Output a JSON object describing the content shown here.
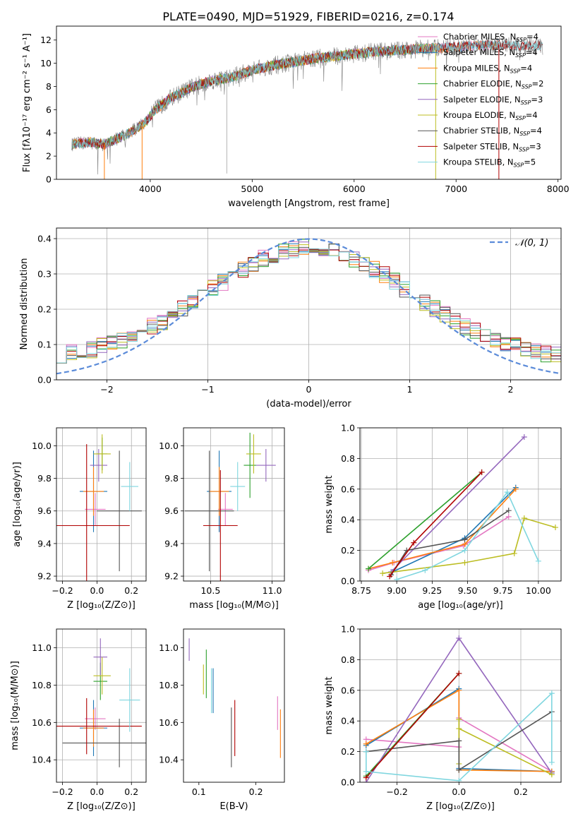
{
  "figure_title": "PLATE=0490, MJD=51929, FIBERID=0216, z=0.174",
  "colors": {
    "Chabrier MILES": "#e377c2",
    "Salpeter MILES": "#1f77b4",
    "Kroupa MILES": "#ff7f0e",
    "Chabrier ELODIE": "#2ca02c",
    "Salpeter ELODIE": "#9467bd",
    "Kroupa ELODIE": "#bcbd22",
    "Chabrier STELIB": "#555555",
    "Salpeter STELIB": "#b10000",
    "Kroupa STELIB": "#7fd6df"
  },
  "chart_data": [
    {
      "id": "spectrum",
      "type": "line",
      "xlabel": "wavelength [Angstrom, rest frame]",
      "ylabel": "Flux [fλ10⁻¹⁷ erg cm⁻² s⁻¹ A⁻¹]",
      "xlim": [
        3080,
        8030
      ],
      "ylim": [
        0,
        13.2
      ],
      "xticks": [
        "4000",
        "5000",
        "6000",
        "7000",
        "8000"
      ],
      "yticks": [
        "0",
        "2",
        "4",
        "6",
        "8",
        "10",
        "12"
      ],
      "grid": false,
      "legend_position": "upper-right",
      "continuum_points": {
        "x": [
          3230,
          3400,
          3550,
          3700,
          3850,
          3950,
          4050,
          4200,
          4400,
          4600,
          4800,
          5000,
          5200,
          5400,
          5600,
          5800,
          6000,
          6200,
          6400,
          6600,
          6800,
          7000,
          7200,
          7400,
          7600,
          7800
        ],
        "y": [
          3.0,
          3.2,
          3.0,
          3.6,
          4.3,
          4.9,
          6.0,
          7.0,
          7.9,
          8.5,
          8.8,
          9.4,
          9.8,
          10.1,
          10.4,
          10.6,
          10.8,
          11.0,
          11.1,
          11.2,
          11.3,
          11.4,
          11.5,
          11.6,
          11.5,
          11.5
        ]
      },
      "series": [
        {
          "name": "Chabrier MILES, N_SSP=4",
          "legend_label": "Chabrier MILES, N",
          "legend_sub": "SSP",
          "legend_tail": "=4",
          "color": "#e377c2",
          "xmax": 7420
        },
        {
          "name": "Salpeter MILES, N_SSP=4",
          "legend_label": "Salpeter MILES, N",
          "legend_sub": "SSP",
          "legend_tail": "=4",
          "color": "#1f77b4",
          "xmax": 7420
        },
        {
          "name": "Kroupa MILES, N_SSP=4",
          "legend_label": "Kroupa MILES, N",
          "legend_sub": "SSP",
          "legend_tail": "=4",
          "color": "#ff7f0e",
          "xmax": 7420
        },
        {
          "name": "Chabrier ELODIE, N_SSP=2",
          "legend_label": "Chabrier ELODIE, N",
          "legend_sub": "SSP",
          "legend_tail": "=2",
          "color": "#2ca02c",
          "xmax": 6800
        },
        {
          "name": "Salpeter ELODIE, N_SSP=3",
          "legend_label": "Salpeter ELODIE, N",
          "legend_sub": "SSP",
          "legend_tail": "=3",
          "color": "#9467bd",
          "xmax": 6800
        },
        {
          "name": "Kroupa ELODIE, N_SSP=4",
          "legend_label": "Kroupa ELODIE, N",
          "legend_sub": "SSP",
          "legend_tail": "=4",
          "color": "#bcbd22",
          "xmax": 6800
        },
        {
          "name": "Chabrier STELIB, N_SSP=4",
          "legend_label": "Chabrier STELIB, N",
          "legend_sub": "SSP",
          "legend_tail": "=4",
          "color": "#555555",
          "xmax": 7850
        },
        {
          "name": "Salpeter STELIB, N_SSP=3",
          "legend_label": "Salpeter STELIB, N",
          "legend_sub": "SSP",
          "legend_tail": "=3",
          "color": "#b10000",
          "xmax": 7850
        },
        {
          "name": "Kroupa STELIB, N_SSP=5",
          "legend_label": "Kroupa STELIB, N",
          "legend_sub": "SSP",
          "legend_tail": "=5",
          "color": "#7fd6df",
          "xmax": 7850
        }
      ]
    },
    {
      "id": "residuals",
      "type": "histogram",
      "xlabel": "(data-model)/error",
      "ylabel": "Normed distribution",
      "xlim": [
        -2.5,
        2.5
      ],
      "ylim": [
        0,
        0.43
      ],
      "xticks": [
        "−2",
        "−1",
        "0",
        "1",
        "2"
      ],
      "yticks": [
        "0.0",
        "0.1",
        "0.2",
        "0.3",
        "0.4"
      ],
      "grid": true,
      "legend_position": "upper-right",
      "gaussian_label": "𝒩(0, 1)",
      "gaussian_color": "#5b8bd9",
      "bin_width": 0.1
    },
    {
      "id": "age_vs_Z",
      "type": "errorbar",
      "xlabel": "Z [log₁₀(Z/Z⊙)]",
      "ylabel": "age  [log₁₀(age/yr)]",
      "xlim": [
        -0.235,
        0.285
      ],
      "ylim": [
        9.17,
        10.11
      ],
      "xticks": [
        "−0.2",
        "0.0",
        "0.2"
      ],
      "yticks": [
        "9.2",
        "9.4",
        "9.6",
        "9.8",
        "10.0"
      ],
      "grid": true,
      "points": [
        {
          "model": "Chabrier MILES",
          "x": -0.01,
          "y": 9.61,
          "xerr": 0.06,
          "yerr": 0.1
        },
        {
          "model": "Salpeter MILES",
          "x": -0.02,
          "y": 9.72,
          "xerr": 0.08,
          "yerr": 0.25
        },
        {
          "model": "Kroupa MILES",
          "x": -0.02,
          "y": 9.72,
          "xerr": 0.06,
          "yerr": 0.15
        },
        {
          "model": "Chabrier ELODIE",
          "x": 0.03,
          "y": 9.95,
          "xerr": 0.03,
          "yerr": 0.1
        },
        {
          "model": "Salpeter ELODIE",
          "x": 0.01,
          "y": 9.88,
          "xerr": 0.05,
          "yerr": 0.1
        },
        {
          "model": "Kroupa ELODIE",
          "x": 0.03,
          "y": 9.95,
          "xerr": 0.05,
          "yerr": 0.12
        },
        {
          "model": "Chabrier STELIB",
          "x": 0.13,
          "y": 9.6,
          "xerr": 0.13,
          "yerr": 0.37
        },
        {
          "model": "Salpeter STELIB",
          "x": -0.06,
          "y": 9.51,
          "xerr": 0.25,
          "yerr": 0.5
        },
        {
          "model": "Kroupa STELIB",
          "x": 0.19,
          "y": 9.75,
          "xerr": 0.05,
          "yerr": 0.15
        }
      ]
    },
    {
      "id": "age_vs_mass",
      "type": "errorbar",
      "xlabel": "mass [log₁₀(M/M⊙)]",
      "ylabel": "",
      "xlim": [
        10.28,
        11.1
      ],
      "ylim": [
        9.17,
        10.11
      ],
      "xticks": [
        "10.5",
        "11.0"
      ],
      "yticks": [
        "9.2",
        "9.4",
        "9.6",
        "9.8",
        "10.0"
      ],
      "grid": true,
      "points": [
        {
          "model": "Chabrier MILES",
          "x": 10.62,
          "y": 9.61,
          "xerr": 0.06,
          "yerr": 0.1
        },
        {
          "model": "Salpeter MILES",
          "x": 10.57,
          "y": 9.72,
          "xerr": 0.1,
          "yerr": 0.25
        },
        {
          "model": "Kroupa MILES",
          "x": 10.57,
          "y": 9.72,
          "xerr": 0.08,
          "yerr": 0.15
        },
        {
          "model": "Chabrier ELODIE",
          "x": 10.82,
          "y": 9.88,
          "xerr": 0.05,
          "yerr": 0.2
        },
        {
          "model": "Salpeter ELODIE",
          "x": 10.95,
          "y": 9.88,
          "xerr": 0.08,
          "yerr": 0.1
        },
        {
          "model": "Kroupa ELODIE",
          "x": 10.85,
          "y": 9.95,
          "xerr": 0.06,
          "yerr": 0.12
        },
        {
          "model": "Chabrier STELIB",
          "x": 10.49,
          "y": 9.6,
          "xerr": 0.2,
          "yerr": 0.37
        },
        {
          "model": "Salpeter STELIB",
          "x": 10.58,
          "y": 9.51,
          "xerr": 0.14,
          "yerr": 0.34
        },
        {
          "model": "Kroupa STELIB",
          "x": 10.72,
          "y": 9.75,
          "xerr": 0.06,
          "yerr": 0.15
        }
      ]
    },
    {
      "id": "weight_vs_age",
      "type": "line",
      "xlabel": "age  [log₁₀(age/yr)]",
      "ylabel": "mass weight",
      "xlim": [
        8.74,
        10.16
      ],
      "ylim": [
        0,
        1.0
      ],
      "xticks": [
        "8.75",
        "9.00",
        "9.25",
        "9.50",
        "9.75",
        "10.00"
      ],
      "yticks": [
        "0.0",
        "0.2",
        "0.4",
        "0.6",
        "0.8",
        "1.0"
      ],
      "grid": true,
      "series": [
        {
          "model": "Chabrier MILES",
          "x": [
            8.8,
            8.98,
            9.47,
            9.79
          ],
          "y": [
            0.07,
            0.12,
            0.23,
            0.42
          ]
        },
        {
          "model": "Salpeter MILES",
          "x": [
            8.97,
            9.48,
            9.84
          ],
          "y": [
            0.06,
            0.28,
            0.61
          ]
        },
        {
          "model": "Kroupa MILES",
          "x": [
            8.8,
            8.97,
            9.48,
            9.84
          ],
          "y": [
            0.08,
            0.12,
            0.24,
            0.6
          ]
        },
        {
          "model": "Chabrier ELODIE",
          "x": [
            8.8,
            9.6
          ],
          "y": [
            0.08,
            0.71
          ]
        },
        {
          "model": "Salpeter ELODIE",
          "x": [
            8.96,
            9.9
          ],
          "y": [
            0.06,
            0.94
          ]
        },
        {
          "model": "Kroupa ELODIE",
          "x": [
            8.9,
            9.48,
            9.83,
            9.9,
            10.12
          ],
          "y": [
            0.05,
            0.12,
            0.18,
            0.41,
            0.35
          ]
        },
        {
          "model": "Chabrier STELIB",
          "x": [
            8.96,
            9.07,
            9.48,
            9.79
          ],
          "y": [
            0.04,
            0.2,
            0.27,
            0.46
          ]
        },
        {
          "model": "Salpeter STELIB",
          "x": [
            8.95,
            9.12,
            9.6
          ],
          "y": [
            0.03,
            0.25,
            0.71
          ]
        },
        {
          "model": "Kroupa STELIB",
          "x": [
            9.0,
            9.2,
            9.48,
            9.78,
            10.0
          ],
          "y": [
            0.01,
            0.07,
            0.2,
            0.58,
            0.13
          ]
        }
      ]
    },
    {
      "id": "mass_vs_Z",
      "type": "errorbar",
      "xlabel": "Z [log₁₀(Z/Z⊙)]",
      "ylabel": "mass [log₁₀(M/M⊙)]",
      "xlim": [
        -0.235,
        0.285
      ],
      "ylim": [
        10.28,
        11.1
      ],
      "xticks": [
        "−0.2",
        "0.0",
        "0.2"
      ],
      "yticks": [
        "10.4",
        "10.6",
        "10.8",
        "11.0"
      ],
      "grid": true,
      "points": [
        {
          "model": "Chabrier MILES",
          "x": -0.01,
          "y": 10.62,
          "xerr": 0.06,
          "yerr": 0.06
        },
        {
          "model": "Salpeter MILES",
          "x": -0.02,
          "y": 10.57,
          "xerr": 0.08,
          "yerr": 0.15
        },
        {
          "model": "Kroupa MILES",
          "x": -0.02,
          "y": 10.57,
          "xerr": 0.06,
          "yerr": 0.1
        },
        {
          "model": "Chabrier ELODIE",
          "x": 0.02,
          "y": 10.82,
          "xerr": 0.04,
          "yerr": 0.1
        },
        {
          "model": "Salpeter ELODIE",
          "x": 0.02,
          "y": 10.95,
          "xerr": 0.04,
          "yerr": 0.1
        },
        {
          "model": "Kroupa ELODIE",
          "x": 0.03,
          "y": 10.85,
          "xerr": 0.05,
          "yerr": 0.1
        },
        {
          "model": "Chabrier STELIB",
          "x": 0.13,
          "y": 10.49,
          "xerr": 0.33,
          "yerr": 0.13
        },
        {
          "model": "Salpeter STELIB",
          "x": -0.06,
          "y": 10.58,
          "xerr": 0.32,
          "yerr": 0.15
        },
        {
          "model": "Kroupa STELIB",
          "x": 0.19,
          "y": 10.72,
          "xerr": 0.06,
          "yerr": 0.17
        }
      ]
    },
    {
      "id": "mass_vs_ebv",
      "type": "errorbar",
      "xlabel": "E(B-V)",
      "ylabel": "",
      "xlim": [
        0.073,
        0.25
      ],
      "ylim": [
        10.28,
        11.1
      ],
      "xticks": [
        "0.1",
        "0.2"
      ],
      "yticks": [
        "10.4",
        "10.6",
        "10.8",
        "11.0"
      ],
      "grid": false,
      "points": [
        {
          "model": "Chabrier MILES",
          "x": 0.238,
          "y": 10.65,
          "xerr": 0,
          "yerr": 0.09
        },
        {
          "model": "Salpeter MILES",
          "x": 0.125,
          "y": 10.77,
          "xerr": 0,
          "yerr": 0.12
        },
        {
          "model": "Kroupa MILES",
          "x": 0.243,
          "y": 10.54,
          "xerr": 0,
          "yerr": 0.13
        },
        {
          "model": "Chabrier ELODIE",
          "x": 0.113,
          "y": 10.86,
          "xerr": 0,
          "yerr": 0.13
        },
        {
          "model": "Salpeter ELODIE",
          "x": 0.083,
          "y": 10.99,
          "xerr": 0,
          "yerr": 0.06
        },
        {
          "model": "Kroupa ELODIE",
          "x": 0.108,
          "y": 10.83,
          "xerr": 0,
          "yerr": 0.08
        },
        {
          "model": "Chabrier STELIB",
          "x": 0.157,
          "y": 10.52,
          "xerr": 0,
          "yerr": 0.16
        },
        {
          "model": "Salpeter STELIB",
          "x": 0.163,
          "y": 10.57,
          "xerr": 0,
          "yerr": 0.15
        },
        {
          "model": "Kroupa STELIB",
          "x": 0.122,
          "y": 10.77,
          "xerr": 0,
          "yerr": 0.12
        }
      ]
    },
    {
      "id": "weight_vs_Z",
      "type": "line",
      "xlabel": "Z [log₁₀(Z/Z⊙)]",
      "ylabel": "mass weight",
      "xlim": [
        -0.32,
        0.33
      ],
      "ylim": [
        0,
        1.0
      ],
      "xticks": [
        "−0.2",
        "0.0",
        "0.2"
      ],
      "yticks": [
        "0.0",
        "0.2",
        "0.4",
        "0.6",
        "0.8",
        "1.0"
      ],
      "grid": true,
      "series": [
        {
          "model": "Chabrier MILES",
          "x": [
            -0.3,
            0.0,
            0.0,
            0.3
          ],
          "y": [
            0.28,
            0.23,
            0.42,
            0.07
          ]
        },
        {
          "model": "Salpeter MILES",
          "x": [
            -0.3,
            0.0,
            0.0,
            0.3
          ],
          "y": [
            0.24,
            0.61,
            0.09,
            0.07
          ]
        },
        {
          "model": "Kroupa MILES",
          "x": [
            -0.3,
            0.0,
            0.0,
            0.3
          ],
          "y": [
            0.25,
            0.6,
            0.08,
            0.07
          ]
        },
        {
          "model": "Chabrier ELODIE",
          "x": [
            -0.3,
            0.0
          ],
          "y": [
            0.04,
            0.71
          ]
        },
        {
          "model": "Salpeter ELODIE",
          "x": [
            -0.3,
            0.0,
            0.3
          ],
          "y": [
            0.0,
            0.94,
            0.06
          ]
        },
        {
          "model": "Kroupa ELODIE",
          "x": [
            0.0,
            0.0,
            0.0,
            0.3
          ],
          "y": [
            0.12,
            0.41,
            0.35,
            0.05
          ]
        },
        {
          "model": "Chabrier STELIB",
          "x": [
            -0.3,
            0.0,
            0.0,
            0.3
          ],
          "y": [
            0.2,
            0.27,
            0.08,
            0.46
          ]
        },
        {
          "model": "Salpeter STELIB",
          "x": [
            -0.3,
            0.0
          ],
          "y": [
            0.03,
            0.71
          ]
        },
        {
          "model": "Kroupa STELIB",
          "x": [
            -0.3,
            -0.3,
            0.0,
            0.3,
            0.3
          ],
          "y": [
            0.2,
            0.07,
            0.01,
            0.58,
            0.13
          ]
        }
      ]
    }
  ]
}
